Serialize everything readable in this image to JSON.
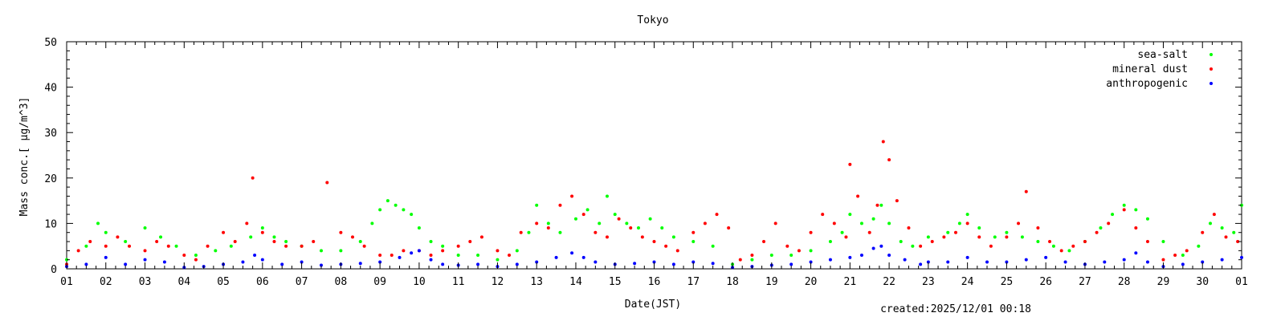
{
  "chart_data": {
    "type": "scatter",
    "title": "Tokyo",
    "xlabel": "Date(JST)",
    "ylabel": "Mass conc.[ μg/m^3]",
    "ylim": [
      0,
      50
    ],
    "yticks": [
      0,
      10,
      20,
      30,
      40,
      50
    ],
    "xlim": [
      1,
      31
    ],
    "xtick_labels": [
      "01",
      "02",
      "03",
      "04",
      "05",
      "06",
      "07",
      "08",
      "09",
      "10",
      "11",
      "12",
      "13",
      "14",
      "15",
      "16",
      "17",
      "18",
      "19",
      "20",
      "21",
      "22",
      "23",
      "24",
      "25",
      "26",
      "27",
      "28",
      "29",
      "30",
      "01"
    ],
    "legend_position": "top-right",
    "grid": false,
    "footer": "created:2025/12/01 00:18",
    "series": [
      {
        "name": "sea-salt",
        "color": "#00ff00",
        "x": [
          1.0,
          1.5,
          1.8,
          2.0,
          2.5,
          3.0,
          3.4,
          3.8,
          4.3,
          4.8,
          5.2,
          5.7,
          6.0,
          6.3,
          6.6,
          7.0,
          7.5,
          8.0,
          8.5,
          8.8,
          9.0,
          9.2,
          9.4,
          9.6,
          9.8,
          10.0,
          10.3,
          10.6,
          11.0,
          11.5,
          12.0,
          12.5,
          12.8,
          13.0,
          13.3,
          13.6,
          14.0,
          14.3,
          14.6,
          14.8,
          15.0,
          15.3,
          15.6,
          15.9,
          16.2,
          16.5,
          17.0,
          17.5,
          18.0,
          18.5,
          19.0,
          19.5,
          20.0,
          20.5,
          20.8,
          21.0,
          21.3,
          21.6,
          21.8,
          22.0,
          22.3,
          22.6,
          23.0,
          23.5,
          23.8,
          24.0,
          24.3,
          24.7,
          25.0,
          25.4,
          25.8,
          26.2,
          26.6,
          27.0,
          27.4,
          27.7,
          28.0,
          28.3,
          28.6,
          29.0,
          29.5,
          29.9,
          30.2,
          30.5,
          30.8,
          31.0
        ],
        "y": [
          2,
          5,
          10,
          8,
          6,
          9,
          7,
          5,
          3,
          4,
          5,
          7,
          9,
          7,
          6,
          5,
          4,
          4,
          6,
          10,
          13,
          15,
          14,
          13,
          12,
          9,
          6,
          5,
          3,
          3,
          2,
          4,
          8,
          14,
          10,
          8,
          11,
          13,
          10,
          16,
          12,
          10,
          9,
          11,
          9,
          7,
          6,
          5,
          1,
          2,
          3,
          3,
          4,
          6,
          8,
          12,
          10,
          11,
          14,
          10,
          6,
          5,
          7,
          8,
          10,
          12,
          9,
          7,
          8,
          7,
          6,
          5,
          4,
          6,
          9,
          12,
          14,
          13,
          11,
          6,
          3,
          5,
          10,
          9,
          8,
          14
        ]
      },
      {
        "name": "mineral dust",
        "color": "#ff0000",
        "x": [
          1.0,
          1.3,
          1.6,
          2.0,
          2.3,
          2.6,
          3.0,
          3.3,
          3.6,
          4.0,
          4.3,
          4.6,
          5.0,
          5.3,
          5.6,
          5.75,
          6.0,
          6.3,
          6.6,
          7.0,
          7.3,
          7.65,
          8.0,
          8.3,
          8.6,
          9.0,
          9.3,
          9.6,
          10.0,
          10.3,
          10.6,
          11.0,
          11.3,
          11.6,
          12.0,
          12.3,
          12.6,
          13.0,
          13.3,
          13.6,
          13.9,
          14.2,
          14.5,
          14.8,
          15.1,
          15.4,
          15.7,
          16.0,
          16.3,
          16.6,
          17.0,
          17.3,
          17.6,
          17.9,
          18.2,
          18.5,
          18.8,
          19.1,
          19.4,
          19.7,
          20.0,
          20.3,
          20.6,
          20.9,
          21.0,
          21.2,
          21.5,
          21.7,
          21.85,
          22.0,
          22.2,
          22.5,
          22.8,
          23.1,
          23.4,
          23.7,
          24.0,
          24.3,
          24.6,
          25.0,
          25.3,
          25.5,
          25.8,
          26.1,
          26.4,
          26.7,
          27.0,
          27.3,
          27.6,
          28.0,
          28.3,
          28.6,
          29.0,
          29.3,
          29.6,
          30.0,
          30.3,
          30.6,
          30.9
        ],
        "y": [
          1,
          4,
          6,
          5,
          7,
          5,
          4,
          6,
          5,
          3,
          2,
          5,
          8,
          6,
          10,
          20,
          8,
          6,
          5,
          5,
          6,
          19,
          8,
          7,
          5,
          3,
          3,
          4,
          4,
          3,
          4,
          5,
          6,
          7,
          4,
          3,
          8,
          10,
          9,
          14,
          16,
          12,
          8,
          7,
          11,
          9,
          7,
          6,
          5,
          4,
          8,
          10,
          12,
          9,
          2,
          3,
          6,
          10,
          5,
          4,
          8,
          12,
          10,
          7,
          23,
          16,
          8,
          14,
          28,
          24,
          15,
          9,
          5,
          6,
          7,
          8,
          10,
          7,
          5,
          7,
          10,
          17,
          9,
          6,
          4,
          5,
          6,
          8,
          10,
          13,
          9,
          6,
          2,
          3,
          4,
          8,
          12,
          7,
          6
        ]
      },
      {
        "name": "anthropogenic",
        "color": "#0000ff",
        "x": [
          1.0,
          1.5,
          2.0,
          2.5,
          3.0,
          3.5,
          4.0,
          4.5,
          5.0,
          5.5,
          5.8,
          6.0,
          6.5,
          7.0,
          7.5,
          8.0,
          8.5,
          9.0,
          9.5,
          9.8,
          10.0,
          10.3,
          10.6,
          11.0,
          11.5,
          12.0,
          12.5,
          13.0,
          13.5,
          13.9,
          14.2,
          14.5,
          15.0,
          15.5,
          16.0,
          16.5,
          17.0,
          17.5,
          18.0,
          18.5,
          19.0,
          19.5,
          20.0,
          20.5,
          21.0,
          21.3,
          21.6,
          21.8,
          22.0,
          22.4,
          22.8,
          23.0,
          23.5,
          24.0,
          24.5,
          25.0,
          25.5,
          26.0,
          26.5,
          27.0,
          27.5,
          28.0,
          28.3,
          28.6,
          29.0,
          29.5,
          30.0,
          30.5,
          31.0
        ],
        "y": [
          0.5,
          1.0,
          2.5,
          1.0,
          2.0,
          1.5,
          0.3,
          0.5,
          1.0,
          1.5,
          3.0,
          2.0,
          1.0,
          1.5,
          0.8,
          1.0,
          1.2,
          1.5,
          2.5,
          3.5,
          4.0,
          2.0,
          1.0,
          0.8,
          1.0,
          0.5,
          1.0,
          1.5,
          2.5,
          3.5,
          2.5,
          1.5,
          1.0,
          1.2,
          1.5,
          1.0,
          1.5,
          1.2,
          0.3,
          0.5,
          0.8,
          1.0,
          1.5,
          2.0,
          2.5,
          3.0,
          4.5,
          5.0,
          3.0,
          2.0,
          1.0,
          1.5,
          1.5,
          2.5,
          1.5,
          1.5,
          2.0,
          2.5,
          1.5,
          1.0,
          1.5,
          2.0,
          3.5,
          1.5,
          0.5,
          1.0,
          1.5,
          2.0,
          2.5
        ]
      }
    ]
  }
}
